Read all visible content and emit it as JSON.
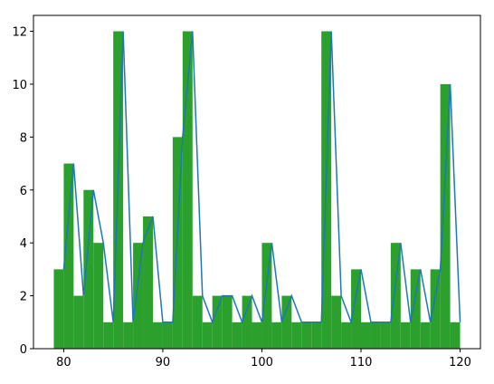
{
  "chart_data": {
    "type": "histogram",
    "bins": [
      79,
      80,
      81,
      82,
      83,
      84,
      85,
      86,
      87,
      88,
      89,
      90,
      91,
      92,
      93,
      94,
      95,
      96,
      97,
      98,
      99,
      100,
      101,
      102,
      103,
      104,
      105,
      106,
      107,
      108,
      109,
      110,
      111,
      112,
      113,
      114,
      115,
      116,
      117,
      118,
      119,
      120
    ],
    "values": [
      3,
      7,
      2,
      6,
      4,
      1,
      12,
      1,
      4,
      5,
      1,
      1,
      8,
      12,
      2,
      1,
      2,
      2,
      1,
      2,
      1,
      4,
      1,
      2,
      1,
      1,
      1,
      12,
      2,
      1,
      3,
      1,
      1,
      1,
      4,
      1,
      3,
      1,
      3,
      10,
      1
    ],
    "color": "#2ca02c",
    "line": {
      "x": [
        80,
        81,
        82,
        83,
        84,
        85,
        86,
        87,
        88,
        89,
        90,
        91,
        92,
        93,
        94,
        95,
        96,
        97,
        98,
        99,
        100,
        101,
        102,
        103,
        104,
        105,
        106,
        107,
        108,
        109,
        110,
        111,
        112,
        113,
        114,
        115,
        116,
        117,
        118,
        119,
        120
      ],
      "values": [
        3,
        7,
        2,
        6,
        4,
        1,
        12,
        1,
        4,
        5,
        1,
        1,
        8,
        12,
        2,
        1,
        2,
        2,
        1,
        2,
        1,
        4,
        1,
        2,
        1,
        1,
        1,
        12,
        2,
        1,
        3,
        1,
        1,
        1,
        4,
        1,
        3,
        1,
        3,
        10,
        1
      ],
      "color": "#1f77b4"
    },
    "xlim": [
      76.95,
      122.05
    ],
    "ylim": [
      0,
      12.6
    ],
    "xticks": [
      80,
      90,
      100,
      110,
      120
    ],
    "yticks": [
      0,
      2,
      4,
      6,
      8,
      10,
      12
    ],
    "grid": false
  }
}
